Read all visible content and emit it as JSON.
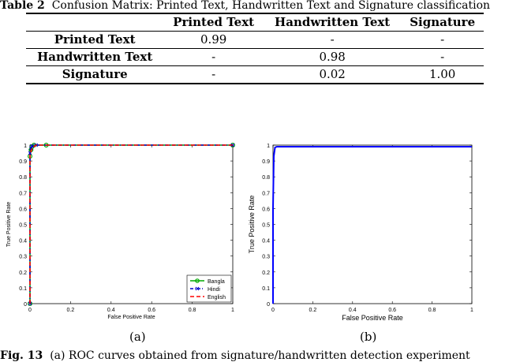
{
  "table": {
    "caption_label": "Table 2",
    "caption_text": "Confusion Matrix: Printed Text, Handwritten Text and Signature classification",
    "header": [
      "",
      "Printed Text",
      "Handwritten Text",
      "Signature"
    ],
    "rows": [
      {
        "label": "Printed Text",
        "cells": [
          "0.99",
          "-",
          "-"
        ]
      },
      {
        "label": "Handwritten Text",
        "cells": [
          "-",
          "0.98",
          "-"
        ]
      },
      {
        "label": "Signature",
        "cells": [
          "-",
          "0.02",
          "1.00"
        ]
      }
    ]
  },
  "chart_data": [
    {
      "type": "line",
      "xlabel": "False Positive Rate",
      "ylabel": "True Positive Rate",
      "xlim": [
        0,
        1
      ],
      "ylim": [
        0,
        1
      ],
      "xticks": [
        "0",
        "0.2",
        "0.4",
        "0.6",
        "0.8",
        "1"
      ],
      "yticks": [
        "0",
        "0.1",
        "0.2",
        "0.3",
        "0.4",
        "0.5",
        "0.6",
        "0.7",
        "0.8",
        "0.9",
        "1"
      ],
      "grid": false,
      "legend_position": "bottom-right",
      "series": [
        {
          "name": "Bangla",
          "color": "#00aa00",
          "marker": "circle",
          "x": [
            0,
            0,
            0.005,
            0.01,
            0.02,
            0.08,
            1
          ],
          "y": [
            0,
            0.93,
            0.97,
            0.99,
            1.0,
            1.0,
            1.0
          ]
        },
        {
          "name": "Hindi",
          "color": "#0000cc",
          "marker": "x",
          "x": [
            0,
            0,
            0.005,
            0.01,
            0.03,
            1
          ],
          "y": [
            0,
            0.95,
            0.98,
            0.995,
            1.0,
            1.0
          ]
        },
        {
          "name": "English",
          "color": "#ff0000",
          "marker": "none",
          "x": [
            0,
            0,
            0.01,
            0.03,
            1
          ],
          "y": [
            0,
            0.94,
            0.98,
            1.0,
            1.0
          ]
        }
      ]
    },
    {
      "type": "line",
      "xlabel": "False Positive Rate",
      "ylabel": "True Positive Rate",
      "xlim": [
        0,
        1
      ],
      "ylim": [
        0,
        1
      ],
      "xticks": [
        "0",
        "0.2",
        "0.4",
        "0.6",
        "0.8",
        "1"
      ],
      "yticks": [
        "0",
        "0.1",
        "0.2",
        "0.3",
        "0.4",
        "0.5",
        "0.6",
        "0.7",
        "0.8",
        "0.9",
        "1"
      ],
      "grid": false,
      "series": [
        {
          "color": "#0000ff",
          "x": [
            0,
            0,
            0.004,
            0.01,
            0.02,
            1
          ],
          "y": [
            0,
            0.6,
            0.93,
            0.985,
            0.99,
            0.99
          ]
        }
      ]
    }
  ],
  "figure": {
    "sub_a": "(a)",
    "sub_b": "(b)",
    "caption_label": "Fig. 13",
    "caption_text": "(a) ROC curves obtained from signature/handwritten detection experiment"
  }
}
